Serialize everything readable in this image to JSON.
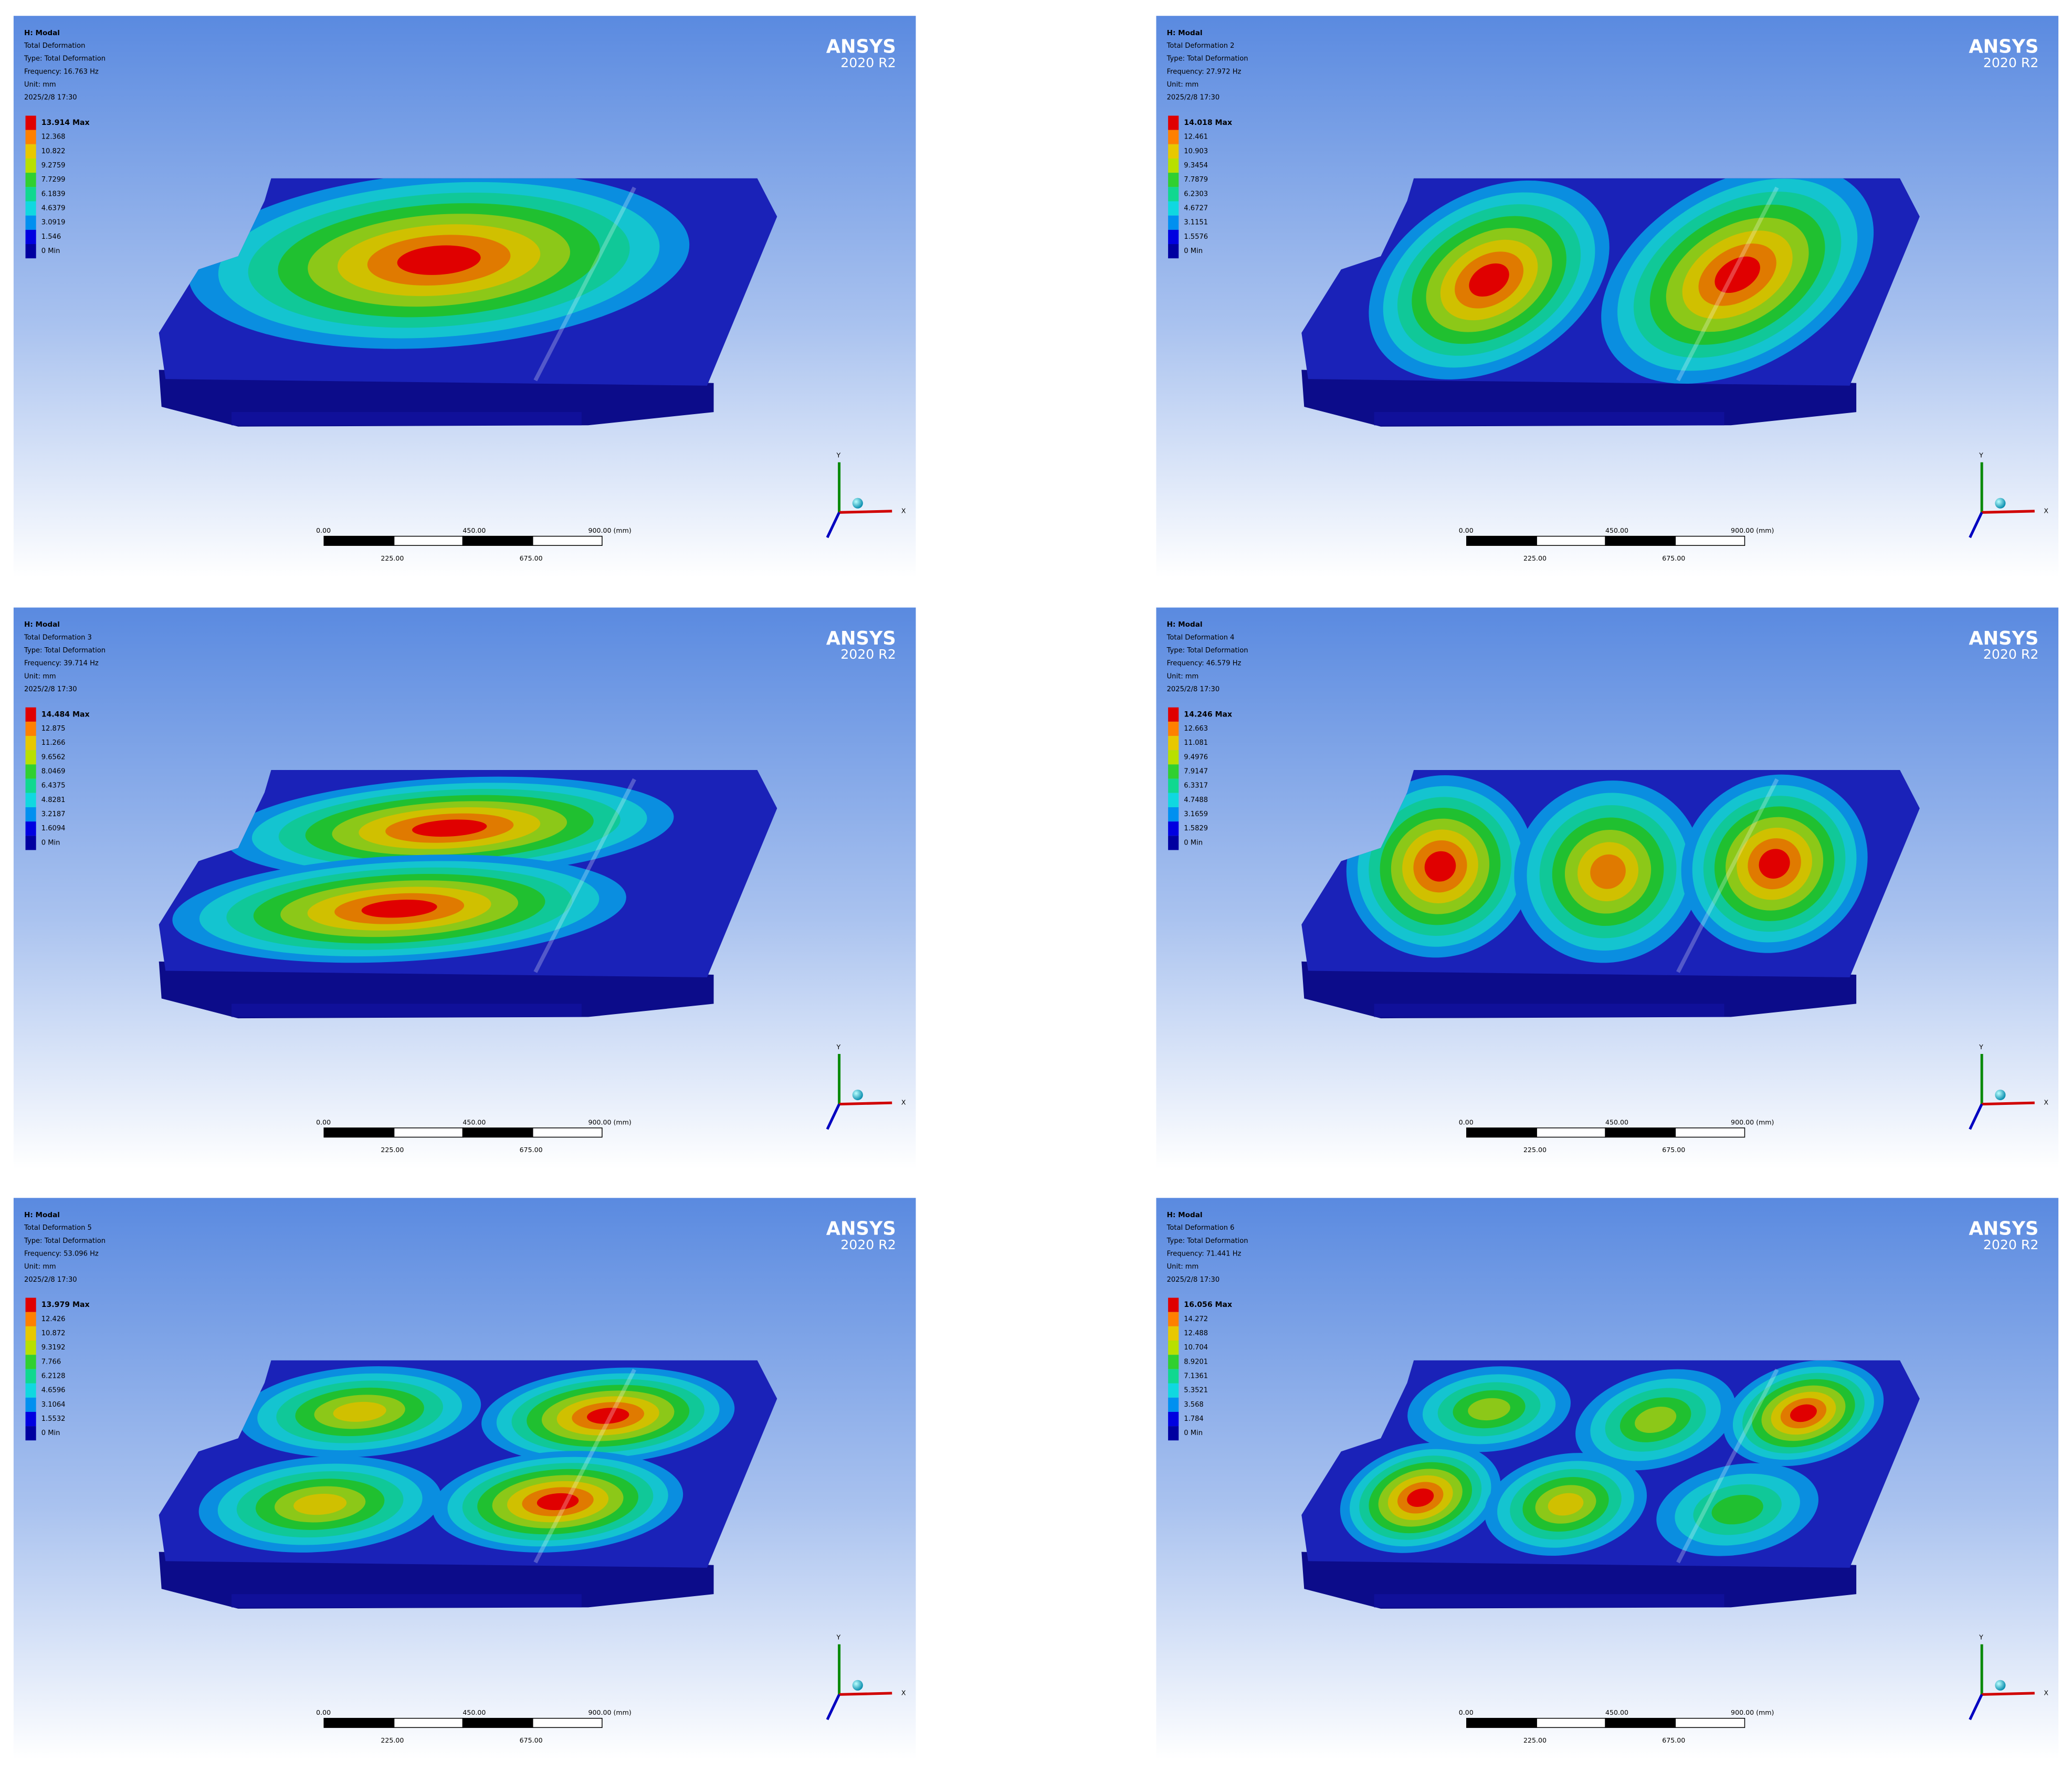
{
  "panels": [
    {
      "header": [
        "H: Modal",
        "Total Deformation",
        "Type: Total Deformation",
        "Frequency: 16.763 Hz",
        "Unit: mm",
        "2025/2/8 17:30"
      ],
      "legend": [
        "13.914 Max",
        "12.368",
        "10.822",
        "9.2759",
        "7.7299",
        "6.1839",
        "4.6379",
        "3.0919",
        "1.546",
        "0 Min"
      ],
      "logo": {
        "name": "ANSYS",
        "version": "2020 R2"
      },
      "scale": {
        "top": [
          "0.00",
          "450.00",
          "900.00 (mm)"
        ],
        "bottom": [
          "225.00",
          "675.00"
        ]
      },
      "axes": {
        "y": "Y",
        "x": "X"
      }
    },
    {
      "header": [
        "H: Modal",
        "Total Deformation 2",
        "Type: Total Deformation",
        "Frequency: 27.972 Hz",
        "Unit: mm",
        "2025/2/8 17:30"
      ],
      "legend": [
        "14.018 Max",
        "12.461",
        "10.903",
        "9.3454",
        "7.7879",
        "6.2303",
        "4.6727",
        "3.1151",
        "1.5576",
        "0 Min"
      ],
      "logo": {
        "name": "ANSYS",
        "version": "2020 R2"
      },
      "scale": {
        "top": [
          "0.00",
          "450.00",
          "900.00 (mm)"
        ],
        "bottom": [
          "225.00",
          "675.00"
        ]
      },
      "axes": {
        "y": "Y",
        "x": "X"
      }
    },
    {
      "header": [
        "H: Modal",
        "Total Deformation 3",
        "Type: Total Deformation",
        "Frequency: 39.714 Hz",
        "Unit: mm",
        "2025/2/8 17:30"
      ],
      "legend": [
        "14.484 Max",
        "12.875",
        "11.266",
        "9.6562",
        "8.0469",
        "6.4375",
        "4.8281",
        "3.2187",
        "1.6094",
        "0 Min"
      ],
      "logo": {
        "name": "ANSYS",
        "version": "2020 R2"
      },
      "scale": {
        "top": [
          "0.00",
          "450.00",
          "900.00 (mm)"
        ],
        "bottom": [
          "225.00",
          "675.00"
        ]
      },
      "axes": {
        "y": "Y",
        "x": "X"
      }
    },
    {
      "header": [
        "H: Modal",
        "Total Deformation 4",
        "Type: Total Deformation",
        "Frequency: 46.579 Hz",
        "Unit: mm",
        "2025/2/8 17:30"
      ],
      "legend": [
        "14.246 Max",
        "12.663",
        "11.081",
        "9.4976",
        "7.9147",
        "6.3317",
        "4.7488",
        "3.1659",
        "1.5829",
        "0 Min"
      ],
      "logo": {
        "name": "ANSYS",
        "version": "2020 R2"
      },
      "scale": {
        "top": [
          "0.00",
          "450.00",
          "900.00 (mm)"
        ],
        "bottom": [
          "225.00",
          "675.00"
        ]
      },
      "axes": {
        "y": "Y",
        "x": "X"
      }
    },
    {
      "header": [
        "H: Modal",
        "Total Deformation 5",
        "Type: Total Deformation",
        "Frequency: 53.096 Hz",
        "Unit: mm",
        "2025/2/8 17:30"
      ],
      "legend": [
        "13.979 Max",
        "12.426",
        "10.872",
        "9.3192",
        "7.766",
        "6.2128",
        "4.6596",
        "3.1064",
        "1.5532",
        "0 Min"
      ],
      "logo": {
        "name": "ANSYS",
        "version": "2020 R2"
      },
      "scale": {
        "top": [
          "0.00",
          "450.00",
          "900.00 (mm)"
        ],
        "bottom": [
          "225.00",
          "675.00"
        ]
      },
      "axes": {
        "y": "Y",
        "x": "X"
      }
    },
    {
      "header": [
        "H: Modal",
        "Total Deformation 6",
        "Type: Total Deformation",
        "Frequency: 71.441 Hz",
        "Unit: mm",
        "2025/2/8 17:30"
      ],
      "legend": [
        "16.056 Max",
        "14.272",
        "12.488",
        "10.704",
        "8.9201",
        "7.1361",
        "5.3521",
        "3.568",
        "1.784",
        "0 Min"
      ],
      "logo": {
        "name": "ANSYS",
        "version": "2020 R2"
      },
      "scale": {
        "top": [
          "0.00",
          "450.00",
          "900.00 (mm)"
        ],
        "bottom": [
          "225.00",
          "675.00"
        ]
      },
      "axes": {
        "y": "Y",
        "x": "X"
      }
    }
  ]
}
